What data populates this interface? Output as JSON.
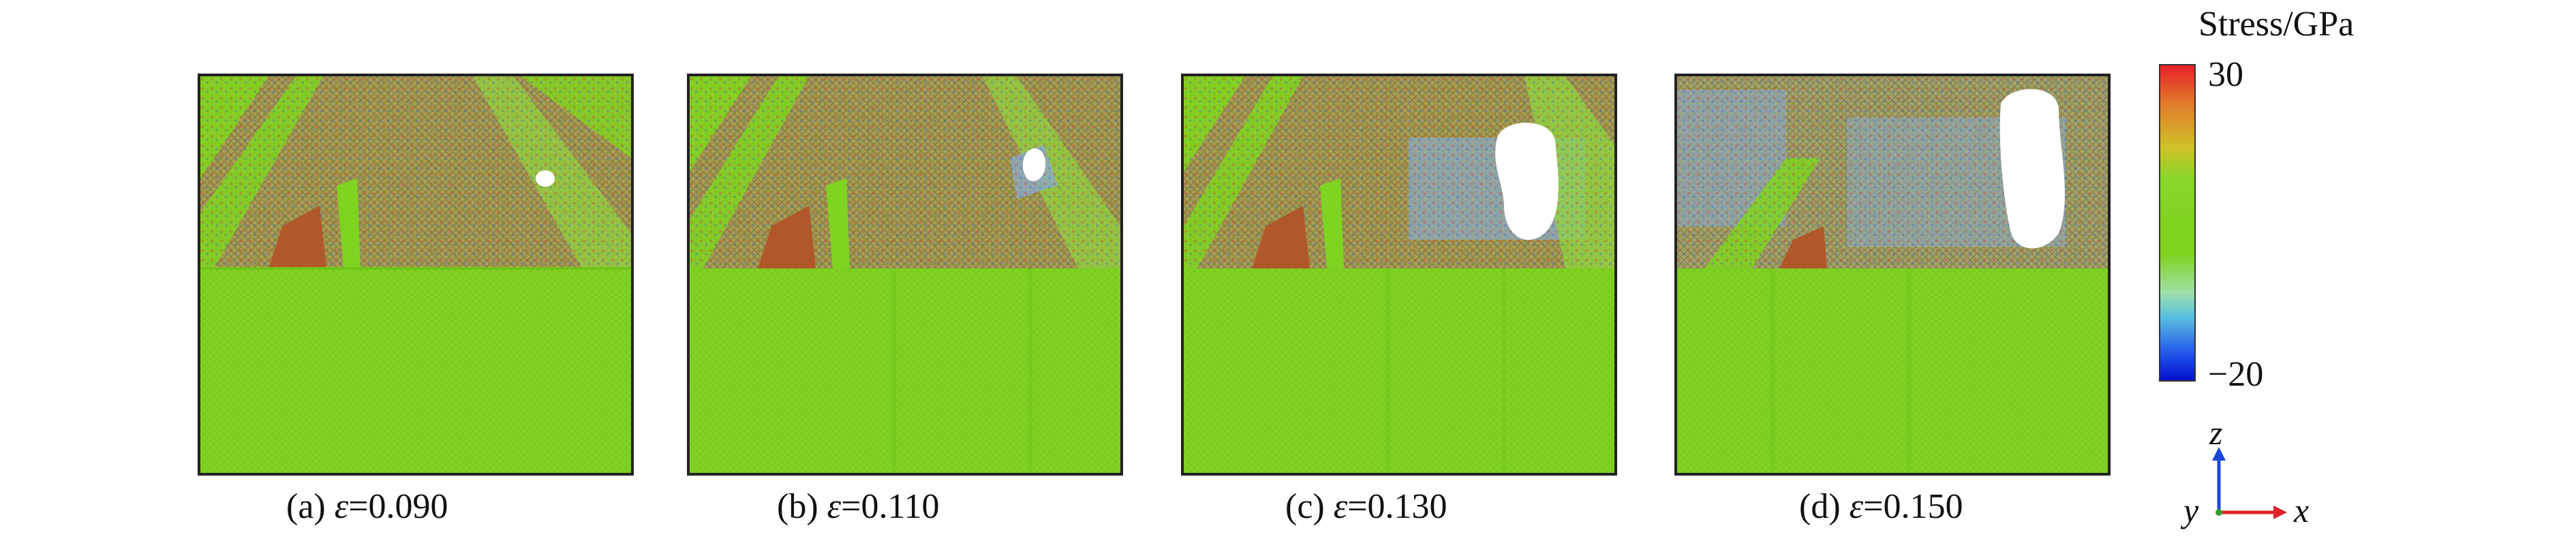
{
  "panels": [
    {
      "caption_prefix": "(a) ",
      "symbol": "ε",
      "caption_value": "=0.090",
      "void": "small"
    },
    {
      "caption_prefix": "(b) ",
      "symbol": "ε",
      "caption_value": "=0.110",
      "void": "medium"
    },
    {
      "caption_prefix": "(c) ",
      "symbol": "ε",
      "caption_value": "=0.130",
      "void": "large"
    },
    {
      "caption_prefix": "(d) ",
      "symbol": "ε",
      "caption_value": "=0.150",
      "void": "largest"
    }
  ],
  "legend": {
    "title": "Stress/GPa",
    "max_label": "30",
    "min_label": "−20",
    "colors": {
      "high": "#e8202a",
      "mid": "#7fd421",
      "low": "#0010cc"
    }
  },
  "axes": {
    "z_label": "z",
    "y_label": "y",
    "x_label": "x",
    "z_color": "#1a48d8",
    "x_color": "#e0202a"
  }
}
